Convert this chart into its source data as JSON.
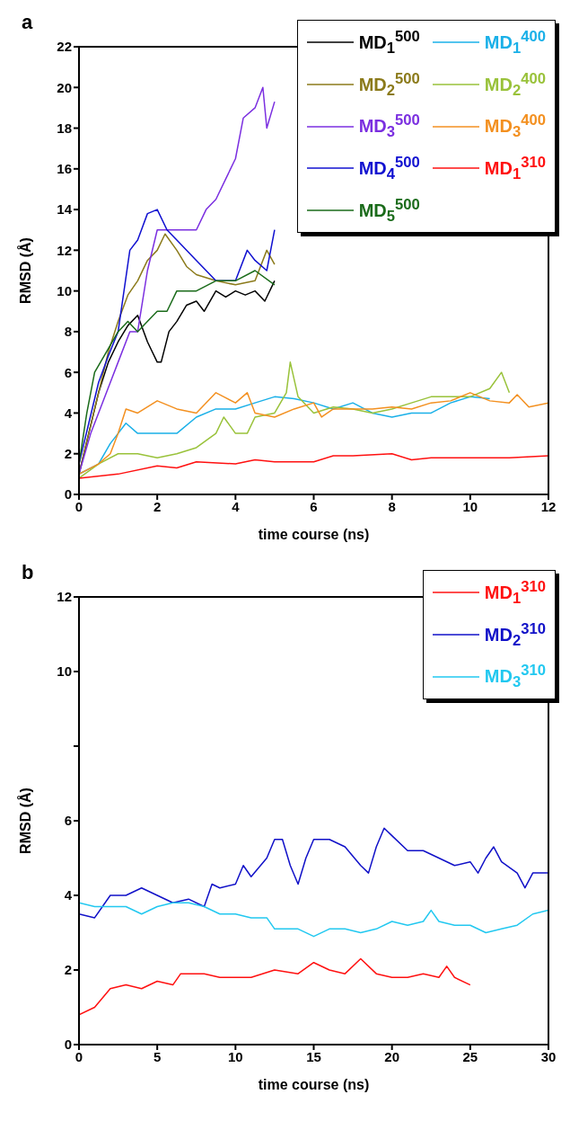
{
  "chart_data": [
    {
      "type": "line",
      "title": "a",
      "xlabel": "time course (ns)",
      "ylabel": "RMSD (Å)",
      "xlim": [
        0,
        12
      ],
      "xticks": [
        0,
        2,
        4,
        6,
        8,
        10,
        12
      ],
      "ylim": [
        0,
        22
      ],
      "yticks": [
        0,
        2,
        4,
        6,
        8,
        10,
        12,
        14,
        16,
        18,
        20,
        22
      ],
      "legend": "top right",
      "series": [
        {
          "name": "MD$_{1}$$^{500}$",
          "color": "#000000",
          "x": [
            0,
            0.25,
            0.5,
            0.75,
            1,
            1.25,
            1.5,
            1.75,
            2,
            2.1,
            2.3,
            2.5,
            2.75,
            3,
            3.2,
            3.5,
            3.75,
            4,
            4.25,
            4.5,
            4.75,
            5
          ],
          "values": [
            1,
            3,
            5,
            6.5,
            7.5,
            8.3,
            8.8,
            7.5,
            6.5,
            6.5,
            8,
            8.5,
            9.3,
            9.5,
            9,
            10,
            9.7,
            10,
            9.8,
            10,
            9.5,
            10.5
          ]
        },
        {
          "name": "MD$_{2}$$^{500}$",
          "color": "#8b7a1a",
          "x": [
            0,
            0.25,
            0.5,
            0.75,
            1,
            1.25,
            1.5,
            1.75,
            2,
            2.2,
            2.5,
            2.75,
            3,
            3.5,
            4,
            4.5,
            4.8,
            5
          ],
          "values": [
            1,
            3,
            5,
            7,
            8.5,
            9.8,
            10.5,
            11.5,
            12,
            12.8,
            12,
            11.2,
            10.8,
            10.5,
            10.3,
            10.5,
            12,
            11.3
          ]
        },
        {
          "name": "MD$_{3}$$^{500}$",
          "color": "#7b2fe0",
          "x": [
            0,
            0.3,
            0.5,
            0.8,
            1,
            1.3,
            1.5,
            1.75,
            2,
            2.5,
            3,
            3.25,
            3.5,
            3.75,
            4,
            4.2,
            4.5,
            4.7,
            4.8,
            5
          ],
          "values": [
            1,
            3,
            4,
            5.5,
            6.5,
            8,
            8,
            11,
            13,
            13,
            13,
            14,
            14.5,
            15.5,
            16.5,
            18.5,
            19,
            20,
            18,
            19.3
          ]
        },
        {
          "name": "MD$_{4}$$^{500}$",
          "color": "#1010d0",
          "x": [
            0,
            0.25,
            0.5,
            0.75,
            1,
            1.3,
            1.5,
            1.75,
            2,
            2.25,
            2.5,
            3,
            3.5,
            4,
            4.3,
            4.5,
            4.8,
            5
          ],
          "values": [
            1.5,
            3.5,
            5.5,
            6.8,
            8,
            12,
            12.5,
            13.8,
            14,
            13,
            12.5,
            11.5,
            10.5,
            10.5,
            12,
            11.5,
            11,
            13
          ]
        },
        {
          "name": "MD$_{5}$$^{500}$",
          "color": "#1a6b1a",
          "x": [
            0,
            0.2,
            0.4,
            0.7,
            1,
            1.25,
            1.5,
            1.75,
            2,
            2.25,
            2.5,
            3,
            3.5,
            4,
            4.5,
            5
          ],
          "values": [
            1.5,
            4,
            6,
            7,
            8,
            8.5,
            8,
            8.5,
            9,
            9,
            10,
            10,
            10.5,
            10.5,
            11,
            10.3
          ]
        },
        {
          "name": "MD$_{1}$$^{400}$",
          "color": "#1ab0e8",
          "x": [
            0,
            0.5,
            0.8,
            1,
            1.2,
            1.5,
            2,
            2.5,
            3,
            3.5,
            4,
            4.5,
            5,
            5.5,
            6,
            6.5,
            7,
            7.5,
            8,
            8.5,
            9,
            9.5,
            10,
            10.5
          ],
          "values": [
            1,
            1.5,
            2.5,
            3,
            3.5,
            3,
            3,
            3,
            3.8,
            4.2,
            4.2,
            4.5,
            4.8,
            4.7,
            4.5,
            4.2,
            4.5,
            4,
            3.8,
            4,
            4,
            4.5,
            4.8,
            4.7
          ]
        },
        {
          "name": "MD$_{2}$$^{400}$",
          "color": "#99c23a",
          "x": [
            0,
            0.5,
            1,
            1.5,
            2,
            2.5,
            3,
            3.5,
            3.7,
            4,
            4.3,
            4.5,
            5,
            5.3,
            5.4,
            5.6,
            6,
            6.5,
            7,
            7.5,
            8,
            8.5,
            9,
            9.5,
            10,
            10.5,
            10.8,
            11
          ],
          "values": [
            0.8,
            1.5,
            2,
            2,
            1.8,
            2,
            2.3,
            3,
            3.8,
            3,
            3,
            3.8,
            4,
            5,
            6.5,
            4.8,
            4,
            4.3,
            4.2,
            4,
            4.2,
            4.5,
            4.8,
            4.8,
            4.8,
            5.2,
            6,
            5
          ]
        },
        {
          "name": "MD$_{3}$$^{400}$",
          "color": "#f39020",
          "x": [
            0,
            0.5,
            0.8,
            1,
            1.2,
            1.5,
            2,
            2.5,
            3,
            3.5,
            3.7,
            4,
            4.3,
            4.5,
            5,
            5.5,
            6,
            6.2,
            6.5,
            7,
            7.5,
            8,
            8.5,
            9,
            9.5,
            10,
            10.5,
            11,
            11.2,
            11.5,
            12
          ],
          "values": [
            1,
            1.5,
            2,
            3,
            4.2,
            4,
            4.6,
            4.2,
            4,
            5,
            4.8,
            4.5,
            5,
            4,
            3.8,
            4.2,
            4.5,
            3.8,
            4.2,
            4.2,
            4.2,
            4.3,
            4.2,
            4.5,
            4.6,
            5,
            4.6,
            4.5,
            4.9,
            4.3,
            4.5
          ]
        },
        {
          "name": "MD$_{1}$$^{310}$",
          "color": "#ff1010",
          "x": [
            0,
            1,
            2,
            2.5,
            3,
            4,
            4.5,
            5,
            6,
            6.5,
            7,
            8,
            8.5,
            9,
            10,
            11,
            12
          ],
          "values": [
            0.8,
            1,
            1.4,
            1.3,
            1.6,
            1.5,
            1.7,
            1.6,
            1.6,
            1.9,
            1.9,
            2,
            1.7,
            1.8,
            1.8,
            1.8,
            1.9
          ]
        }
      ]
    },
    {
      "type": "line",
      "title": "b",
      "xlabel": "time course (ns)",
      "ylabel": "RMSD (Å)",
      "xlim": [
        0,
        30
      ],
      "xticks": [
        0,
        5,
        10,
        15,
        20,
        25,
        30
      ],
      "ylim": [
        0,
        12
      ],
      "yticks": [
        0,
        2,
        4,
        6,
        {
          "value": 8,
          "label": null
        },
        10,
        12
      ],
      "legend": "top right",
      "series": [
        {
          "name": "MD$_{1}$$^{310}$",
          "color": "#ff1010",
          "x": [
            0,
            1,
            2,
            3,
            4,
            5,
            6,
            6.5,
            8,
            9,
            10,
            11,
            12.5,
            14,
            15,
            16,
            17,
            18,
            19,
            20,
            21,
            22,
            23,
            23.5,
            24,
            25
          ],
          "values": [
            0.8,
            1,
            1.5,
            1.6,
            1.5,
            1.7,
            1.6,
            1.9,
            1.9,
            1.8,
            1.8,
            1.8,
            2,
            1.9,
            2.2,
            2,
            1.9,
            2.3,
            1.9,
            1.8,
            1.8,
            1.9,
            1.8,
            2.1,
            1.8,
            1.6
          ]
        },
        {
          "name": "MD$_{2}$$^{310}$",
          "color": "#1010c8",
          "x": [
            0,
            1,
            2,
            3,
            4,
            5,
            6,
            7,
            8,
            8.5,
            9,
            10,
            10.5,
            11,
            12,
            12.5,
            13,
            13.5,
            14,
            14.5,
            15,
            16,
            17,
            18,
            18.5,
            19,
            19.5,
            20,
            21,
            22,
            23,
            24,
            25,
            25.5,
            26,
            26.5,
            27,
            28,
            28.5,
            29,
            30
          ],
          "values": [
            3.5,
            3.4,
            4,
            4,
            4.2,
            4,
            3.8,
            3.9,
            3.7,
            4.3,
            4.2,
            4.3,
            4.8,
            4.5,
            5,
            5.5,
            5.5,
            4.8,
            4.3,
            5,
            5.5,
            5.5,
            5.3,
            4.8,
            4.6,
            5.3,
            5.8,
            5.6,
            5.2,
            5.2,
            5,
            4.8,
            4.9,
            4.6,
            5,
            5.3,
            4.9,
            4.6,
            4.2,
            4.6,
            4.6
          ]
        },
        {
          "name": "MD$_{3}$$^{310}$",
          "color": "#22c8f0",
          "x": [
            0,
            1,
            2,
            3,
            4,
            5,
            6,
            7,
            8,
            9,
            10,
            11,
            12,
            12.5,
            13,
            14,
            15,
            16,
            17,
            18,
            19,
            20,
            21,
            22,
            22.5,
            23,
            24,
            25,
            26,
            27,
            28,
            29,
            30
          ],
          "values": [
            3.8,
            3.7,
            3.7,
            3.7,
            3.5,
            3.7,
            3.8,
            3.8,
            3.7,
            3.5,
            3.5,
            3.4,
            3.4,
            3.1,
            3.1,
            3.1,
            2.9,
            3.1,
            3.1,
            3,
            3.1,
            3.3,
            3.2,
            3.3,
            3.6,
            3.3,
            3.2,
            3.2,
            3,
            3.1,
            3.2,
            3.5,
            3.6
          ]
        }
      ]
    }
  ]
}
